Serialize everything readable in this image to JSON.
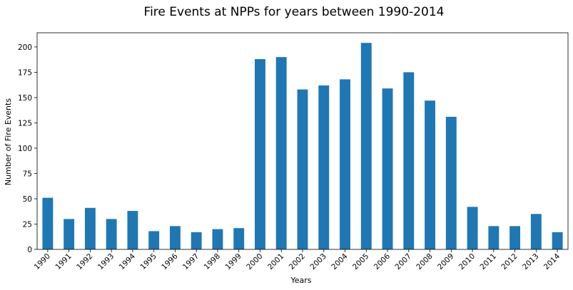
{
  "chart_data": {
    "type": "bar",
    "title": "Fire Events at NPPs for years between 1990-2014",
    "xlabel": "Years",
    "ylabel": "Number of Fire Events",
    "categories": [
      "1990",
      "1991",
      "1992",
      "1993",
      "1994",
      "1995",
      "1996",
      "1997",
      "1998",
      "1999",
      "2000",
      "2001",
      "2002",
      "2003",
      "2004",
      "2005",
      "2006",
      "2007",
      "2008",
      "2009",
      "2010",
      "2011",
      "2012",
      "2013",
      "2014"
    ],
    "values": [
      51,
      30,
      41,
      30,
      38,
      18,
      23,
      17,
      20,
      21,
      188,
      190,
      158,
      162,
      168,
      204,
      159,
      175,
      147,
      131,
      42,
      23,
      23,
      35,
      17
    ],
    "ylim": [
      0,
      214
    ],
    "yticks": [
      0,
      25,
      50,
      75,
      100,
      125,
      150,
      175,
      200
    ],
    "grid": false,
    "legend": "none",
    "bar_color": "#1f77b4"
  }
}
